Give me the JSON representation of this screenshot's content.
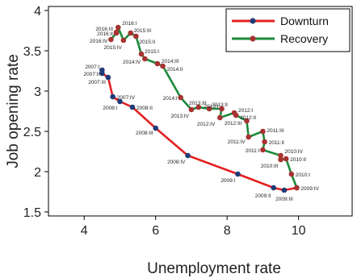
{
  "chart_data": {
    "type": "line",
    "xlabel": "Unemployment rate",
    "ylabel": "Job opening rate",
    "xlim": [
      3,
      11.5
    ],
    "ylim": [
      1.45,
      4.05
    ],
    "xticks": [
      4,
      6,
      8,
      10
    ],
    "yticks": [
      1.5,
      2,
      2.5,
      3,
      3.5,
      4
    ],
    "grid": false,
    "legend_position": "top-right",
    "colors": {
      "downturn": "#e32020",
      "recovery": "#1b8a3a",
      "marker": "#a83232",
      "downturn_marker": "#1f3c78"
    },
    "series": [
      {
        "name": "Downturn",
        "points": [
          {
            "label": "2007:I",
            "x": 4.5,
            "y": 3.26
          },
          {
            "label": "2007:II",
            "x": 4.5,
            "y": 3.22
          },
          {
            "label": "2007:III",
            "x": 4.67,
            "y": 3.17
          },
          {
            "label": "2007:IV",
            "x": 4.8,
            "y": 2.93
          },
          {
            "label": "2008:I",
            "x": 5.0,
            "y": 2.87
          },
          {
            "label": "2008:II",
            "x": 5.35,
            "y": 2.8
          },
          {
            "label": "2008:III",
            "x": 6.0,
            "y": 2.54
          },
          {
            "label": "2008:IV",
            "x": 6.9,
            "y": 2.2
          },
          {
            "label": "2009:I",
            "x": 8.3,
            "y": 1.97
          },
          {
            "label": "2009:II",
            "x": 9.3,
            "y": 1.8
          },
          {
            "label": "2009:III",
            "x": 9.6,
            "y": 1.77
          },
          {
            "label": "2009:IV",
            "x": 9.95,
            "y": 1.8
          }
        ]
      },
      {
        "name": "Recovery",
        "points": [
          {
            "label": "2009:IV",
            "x": 9.95,
            "y": 1.8
          },
          {
            "label": "2010:I",
            "x": 9.8,
            "y": 1.97
          },
          {
            "label": "2010:II",
            "x": 9.65,
            "y": 2.16
          },
          {
            "label": "2010:III",
            "x": 9.5,
            "y": 2.15
          },
          {
            "label": "2010:IV",
            "x": 9.5,
            "y": 2.2
          },
          {
            "label": "2011:I",
            "x": 9.0,
            "y": 2.27
          },
          {
            "label": "2011:II",
            "x": 9.05,
            "y": 2.37
          },
          {
            "label": "2011:III",
            "x": 9.0,
            "y": 2.5
          },
          {
            "label": "2011:IV",
            "x": 8.6,
            "y": 2.43
          },
          {
            "label": "2012:III",
            "x": 8.55,
            "y": 2.63
          },
          {
            "label": "2012:II",
            "x": 8.25,
            "y": 2.7
          },
          {
            "label": "2012:I",
            "x": 8.2,
            "y": 2.73
          },
          {
            "label": "2012:IV",
            "x": 7.8,
            "y": 2.67
          },
          {
            "label": "2013:I",
            "x": 7.85,
            "y": 2.78
          },
          {
            "label": "2013:II",
            "x": 7.5,
            "y": 2.78
          },
          {
            "label": "2013:III",
            "x": 7.2,
            "y": 2.8
          },
          {
            "label": "2013:IV",
            "x": 7.0,
            "y": 2.77
          },
          {
            "label": "2014:I",
            "x": 6.7,
            "y": 2.92
          },
          {
            "label": "2014:II",
            "x": 6.2,
            "y": 3.31
          },
          {
            "label": "2014:III",
            "x": 6.05,
            "y": 3.34
          },
          {
            "label": "2014:IV",
            "x": 5.7,
            "y": 3.4
          },
          {
            "label": "2015:I",
            "x": 5.6,
            "y": 3.46
          },
          {
            "label": "2015:II",
            "x": 5.45,
            "y": 3.68
          },
          {
            "label": "2015:III",
            "x": 5.3,
            "y": 3.72
          },
          {
            "label": "2015:IV",
            "x": 5.1,
            "y": 3.63
          },
          {
            "label": "2016:I",
            "x": 4.95,
            "y": 3.79
          },
          {
            "label": "2016:II",
            "x": 4.9,
            "y": 3.73
          },
          {
            "label": "2016:III",
            "x": 4.9,
            "y": 3.72
          },
          {
            "label": "2016:IV",
            "x": 4.75,
            "y": 3.64
          }
        ]
      }
    ]
  }
}
